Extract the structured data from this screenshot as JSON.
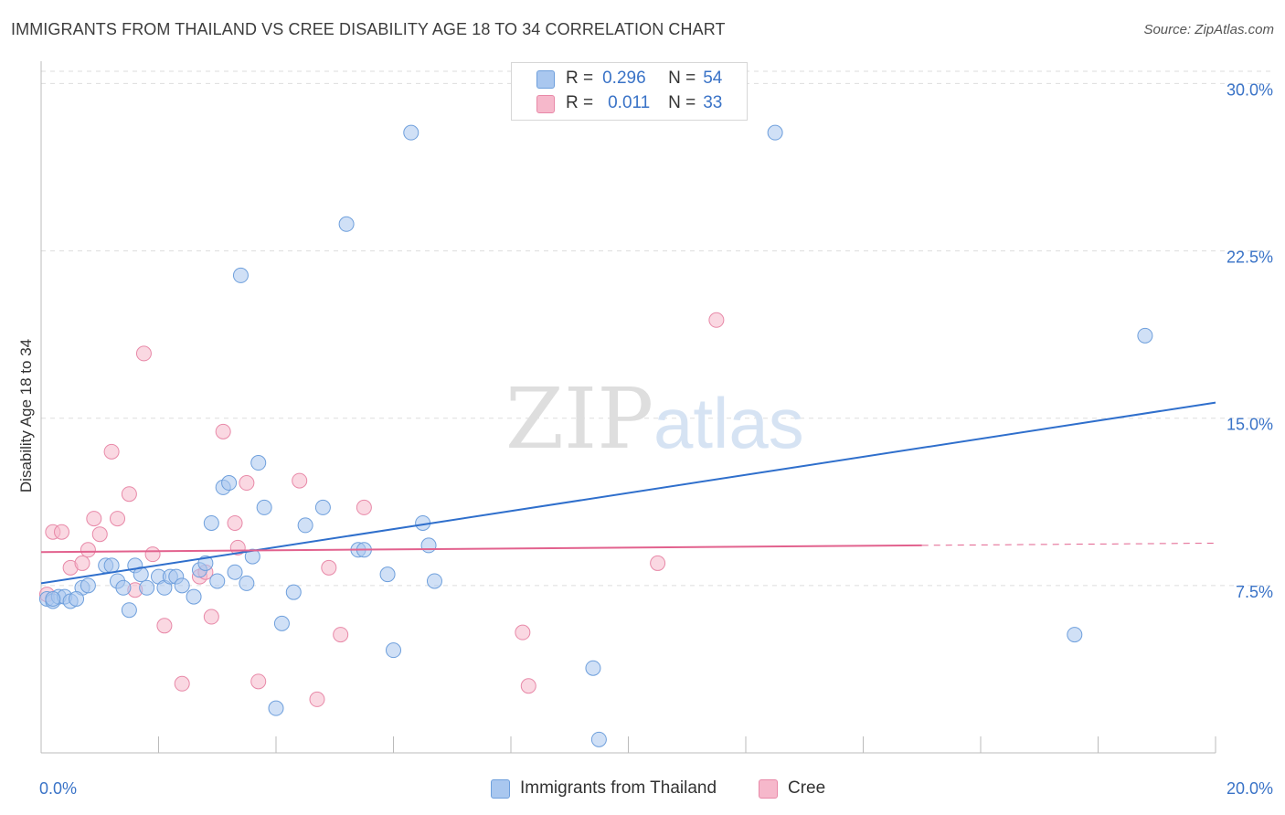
{
  "header": {
    "title": "IMMIGRANTS FROM THAILAND VS CREE DISABILITY AGE 18 TO 34 CORRELATION CHART",
    "source": "Source: ZipAtlas.com"
  },
  "watermark": {
    "zip": "ZIP",
    "atlas": "atlas"
  },
  "legend": {
    "rows": [
      {
        "r_label": "R =",
        "r_value": "0.296",
        "n_label": "N =",
        "n_value": "54"
      },
      {
        "r_label": "R =",
        "r_value": "0.011",
        "n_label": "N =",
        "n_value": "33"
      }
    ]
  },
  "bottom_legend": {
    "series1": "Immigrants from Thailand",
    "series2": "Cree"
  },
  "colors": {
    "series1_fill": "#a9c7ef",
    "series1_stroke": "#6e9fdc",
    "series1_line": "#2f6fcc",
    "series2_fill": "#f6b8cb",
    "series2_stroke": "#e889a8",
    "series2_line": "#e2628e",
    "tick_label": "#3a73c7",
    "grid": "#dddddd"
  },
  "chart_data": {
    "type": "scatter",
    "title": "IMMIGRANTS FROM THAILAND VS CREE DISABILITY AGE 18 TO 34 CORRELATION CHART",
    "xlabel": "",
    "ylabel": "Disability Age 18 to 34",
    "xlim": [
      0,
      20
    ],
    "ylim": [
      0,
      31
    ],
    "x_tick_labels": [
      "0.0%",
      "20.0%"
    ],
    "y_ticks": [
      7.5,
      15,
      22.5,
      30
    ],
    "y_tick_labels": [
      "7.5%",
      "15.0%",
      "22.5%",
      "30.0%"
    ],
    "grid": "horizontal dashed",
    "legend_position": "top-center",
    "series": [
      {
        "name": "Immigrants from Thailand",
        "r": 0.296,
        "n": 54,
        "trend": {
          "x": [
            0,
            20
          ],
          "y": [
            7.6,
            15.7
          ]
        },
        "points": [
          [
            0.1,
            6.9
          ],
          [
            0.2,
            6.8
          ],
          [
            0.3,
            7.0
          ],
          [
            0.4,
            7.0
          ],
          [
            0.5,
            6.8
          ],
          [
            0.7,
            7.4
          ],
          [
            0.8,
            7.5
          ],
          [
            1.1,
            8.4
          ],
          [
            1.2,
            8.4
          ],
          [
            1.3,
            7.7
          ],
          [
            1.4,
            7.4
          ],
          [
            1.5,
            6.4
          ],
          [
            1.6,
            8.4
          ],
          [
            1.7,
            8.0
          ],
          [
            1.8,
            7.4
          ],
          [
            2.0,
            7.9
          ],
          [
            2.1,
            7.4
          ],
          [
            2.2,
            7.9
          ],
          [
            2.3,
            7.9
          ],
          [
            2.4,
            7.5
          ],
          [
            2.6,
            7.0
          ],
          [
            2.7,
            8.2
          ],
          [
            2.8,
            8.5
          ],
          [
            2.9,
            10.3
          ],
          [
            3.0,
            7.7
          ],
          [
            3.1,
            11.9
          ],
          [
            3.2,
            12.1
          ],
          [
            3.3,
            8.1
          ],
          [
            3.4,
            21.4
          ],
          [
            3.5,
            7.6
          ],
          [
            3.6,
            8.8
          ],
          [
            3.7,
            13.0
          ],
          [
            3.8,
            11.0
          ],
          [
            4.0,
            2.0
          ],
          [
            4.1,
            5.8
          ],
          [
            4.3,
            7.2
          ],
          [
            4.5,
            10.2
          ],
          [
            4.8,
            11.0
          ],
          [
            5.2,
            23.7
          ],
          [
            5.4,
            9.1
          ],
          [
            5.5,
            9.1
          ],
          [
            5.9,
            8.0
          ],
          [
            6.0,
            4.6
          ],
          [
            6.3,
            27.8
          ],
          [
            6.5,
            10.3
          ],
          [
            6.6,
            9.3
          ],
          [
            6.7,
            7.7
          ],
          [
            9.4,
            3.8
          ],
          [
            9.5,
            0.6
          ],
          [
            12.5,
            27.8
          ],
          [
            17.6,
            5.3
          ],
          [
            18.8,
            18.7
          ],
          [
            0.2,
            6.9
          ],
          [
            0.6,
            6.9
          ]
        ]
      },
      {
        "name": "Cree",
        "r": 0.011,
        "n": 33,
        "trend": {
          "x": [
            0,
            15
          ],
          "y": [
            9.0,
            9.3
          ]
        },
        "trend_extension": {
          "x": [
            15,
            20
          ],
          "y": [
            9.3,
            9.4
          ]
        },
        "points": [
          [
            0.1,
            7.1
          ],
          [
            0.2,
            9.9
          ],
          [
            0.35,
            9.9
          ],
          [
            0.5,
            8.3
          ],
          [
            0.7,
            8.5
          ],
          [
            0.8,
            9.1
          ],
          [
            0.9,
            10.5
          ],
          [
            1.0,
            9.8
          ],
          [
            1.2,
            13.5
          ],
          [
            1.3,
            10.5
          ],
          [
            1.5,
            11.6
          ],
          [
            1.6,
            7.3
          ],
          [
            1.75,
            17.9
          ],
          [
            1.9,
            8.9
          ],
          [
            2.1,
            5.7
          ],
          [
            2.4,
            3.1
          ],
          [
            2.7,
            7.9
          ],
          [
            2.8,
            8.1
          ],
          [
            2.9,
            6.1
          ],
          [
            3.1,
            14.4
          ],
          [
            3.3,
            10.3
          ],
          [
            3.35,
            9.2
          ],
          [
            3.5,
            12.1
          ],
          [
            3.7,
            3.2
          ],
          [
            4.4,
            12.2
          ],
          [
            4.7,
            2.4
          ],
          [
            4.9,
            8.3
          ],
          [
            5.1,
            5.3
          ],
          [
            5.5,
            11.0
          ],
          [
            8.2,
            5.4
          ],
          [
            8.3,
            3.0
          ],
          [
            10.5,
            8.5
          ],
          [
            11.5,
            19.4
          ]
        ]
      }
    ]
  }
}
